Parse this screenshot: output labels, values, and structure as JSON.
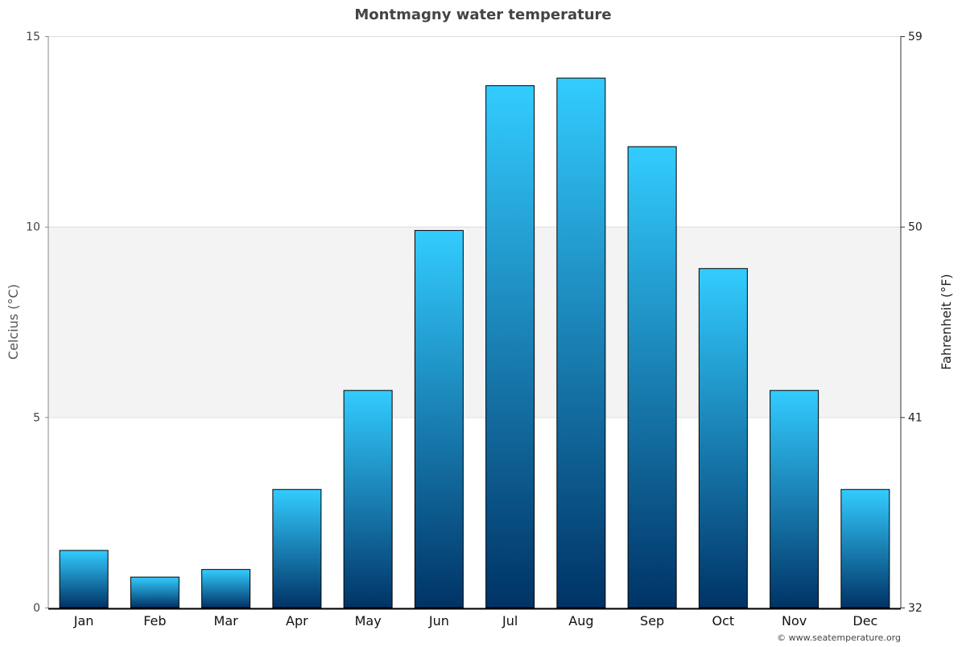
{
  "chart_data": {
    "type": "bar",
    "title": "Montmagny water temperature",
    "ylabel": "Celcius (°C)",
    "y2label": "Fahrenheit (°F)",
    "ylim": [
      0,
      15
    ],
    "yticks": [
      0,
      5,
      10,
      15
    ],
    "y2ticks": [
      32,
      41,
      50,
      59
    ],
    "categories": [
      "Jan",
      "Feb",
      "Mar",
      "Apr",
      "May",
      "Jun",
      "Jul",
      "Aug",
      "Sep",
      "Oct",
      "Nov",
      "Dec"
    ],
    "values": [
      1.5,
      0.8,
      1.0,
      3.1,
      5.7,
      9.9,
      13.7,
      13.9,
      12.1,
      8.9,
      5.7,
      3.1
    ],
    "grid": true,
    "shaded_band": [
      5,
      10
    ],
    "colors": {
      "bar_top": "#33ccff",
      "bar_bottom": "#003366",
      "band": "#f3f3f3",
      "title": "#444444"
    }
  },
  "credit": "© www.seatemperature.org"
}
